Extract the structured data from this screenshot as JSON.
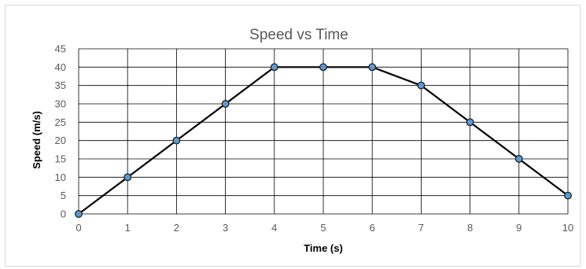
{
  "chart_data": {
    "type": "line",
    "title": "Speed vs Time",
    "xlabel": "Time (s)",
    "ylabel": "Speed (m/s)",
    "x": [
      0,
      1,
      2,
      3,
      4,
      5,
      6,
      7,
      8,
      9,
      10
    ],
    "series": [
      {
        "values": [
          0,
          10,
          20,
          30,
          40,
          40,
          40,
          35,
          25,
          15,
          5
        ]
      }
    ],
    "xlim": [
      0,
      10
    ],
    "ylim": [
      0,
      45
    ],
    "xticks": [
      "0",
      "1",
      "2",
      "3",
      "4",
      "5",
      "6",
      "7",
      "8",
      "9",
      "10"
    ],
    "yticks": [
      "0",
      "5",
      "10",
      "15",
      "20",
      "25",
      "30",
      "35",
      "40",
      "45"
    ],
    "grid": true,
    "legend": "none",
    "colors": {
      "line": "#000000",
      "marker_fill": "#5b9bd5",
      "marker_edge": "#1f1f1f",
      "text": "#595959"
    }
  }
}
